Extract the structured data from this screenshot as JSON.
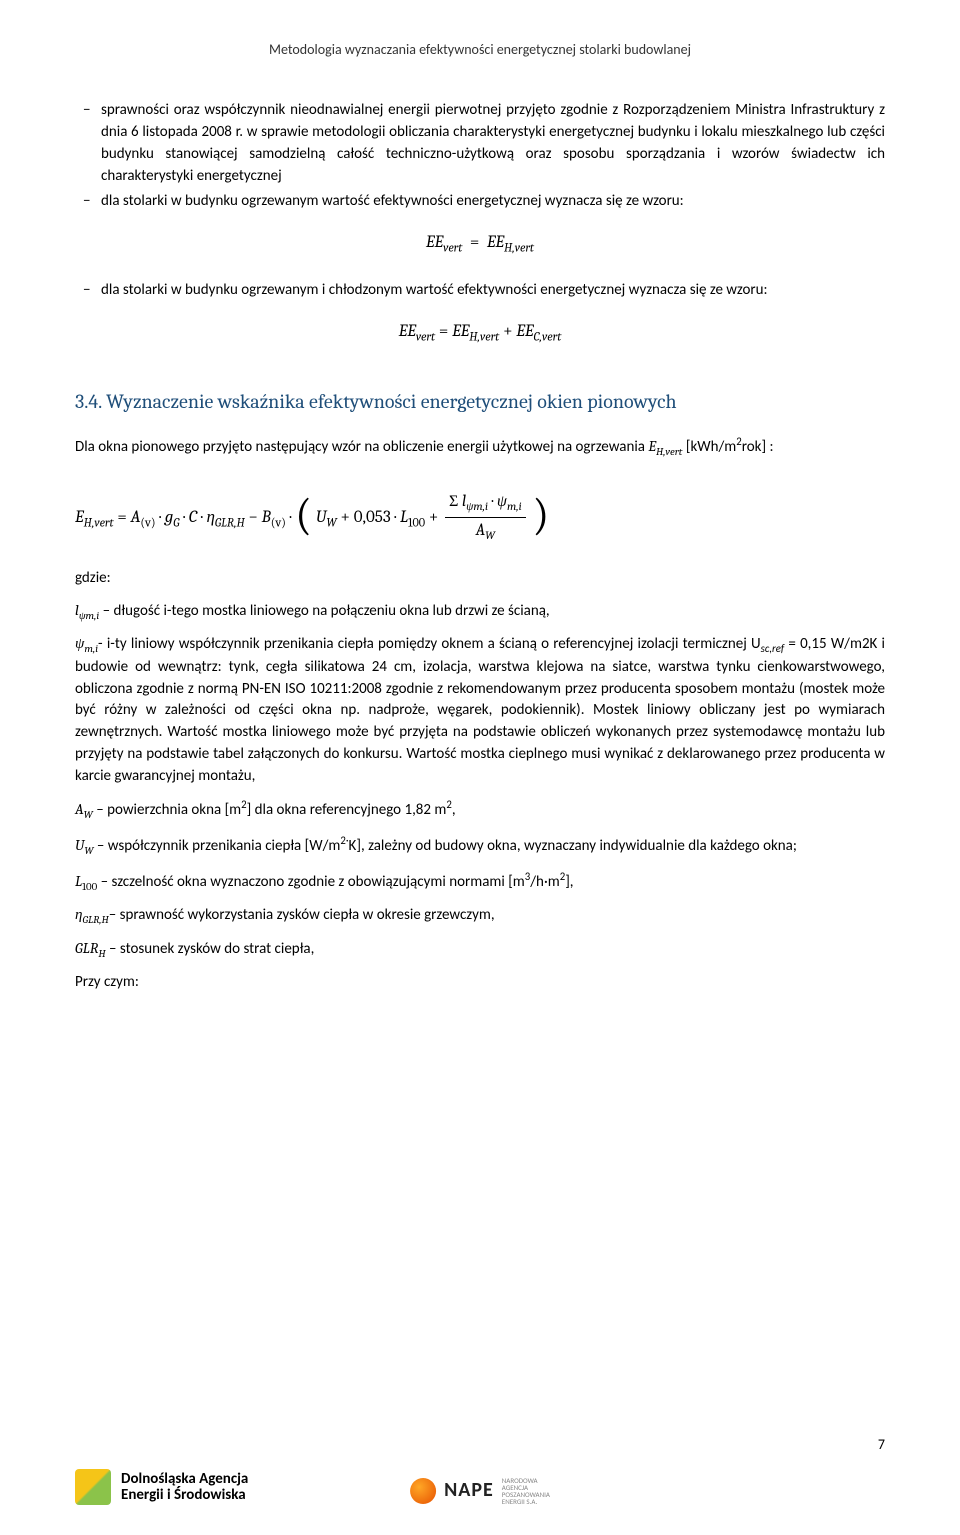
{
  "header": {
    "title": "Metodologia wyznaczania efektywności energetycznej stolarki budowlanej"
  },
  "bullets": {
    "b1": "sprawności oraz współczynnik nieodnawialnej energii pierwotnej przyjęto zgodnie z Rozporządzeniem Ministra Infrastruktury z dnia 6 listopada 2008 r. w sprawie metodologii obliczania charakterystyki energetycznej budynku i lokalu mieszkalnego lub części budynku stanowiącej samodzielną całość techniczno-użytkową oraz sposobu sporządzania i wzorów świadectw ich charakterystyki energetycznej",
    "b2": "dla stolarki w budynku ogrzewanym wartość efektywności energetycznej wyznacza się ze wzoru:",
    "b3": "dla stolarki w budynku ogrzewanym i chłodzonym wartość efektywności energetycznej wyznacza się ze wzoru:"
  },
  "formulas": {
    "f1_lhs": "EE",
    "f1_lhs_sub": "vert",
    "f1_eq": " = ",
    "f1_rhs": "EE",
    "f1_rhs_sub": "H,vert",
    "f2_lhs": "EE",
    "f2_lhs_sub": "vert",
    "f2_rhs1": "EE",
    "f2_rhs1_sub": "H,vert",
    "f2_plus": " + ",
    "f2_rhs2": "EE",
    "f2_rhs2_sub": "C,vert"
  },
  "section": {
    "num_title": "3.4. Wyznaczenie wskaźnika efektywności energetycznej okien pionowych"
  },
  "para1": {
    "pre": "Dla okna pionowego przyjęto następujący wzór na obliczenie energii użytkowej na ogrzewania ",
    "sym": "E",
    "sym_sub": "H,vert",
    "unit_open": " [kWh/m",
    "unit_sup": "2",
    "unit_close": "rok] :"
  },
  "bigf": {
    "E": "E",
    "E_sub": "H,vert",
    "eq": "  =  ",
    "A": "A",
    "A_sub": "(v)",
    "dot": " · ",
    "gG": "g",
    "gG_sub": "G",
    "C": "C",
    "eta": "η",
    "eta_sub": "GLR,H",
    "minus": " − ",
    "B": "B",
    "B_sub": "(v)",
    "dot2": "  ·  ",
    "Uw": "U",
    "Uw_sub": "W",
    "plus1": "  + 0,053  ·  ",
    "L": "L",
    "L_sub": "100",
    "plus2": " + ",
    "frac_num_sigma": "Σ ",
    "frac_num_l": "l",
    "frac_num_l_sub": "ψm,i",
    "frac_num_dot": " · ",
    "frac_num_psi": "ψ",
    "frac_num_psi_sub": "m,i",
    "frac_den": "A",
    "frac_den_sub": "W"
  },
  "gdzie": "gdzie:",
  "defs": {
    "d1_sym": "l",
    "d1_sub": "ψm,i",
    "d1_txt": " – długość i-tego mostka liniowego na połączeniu okna lub drzwi ze ścianą,",
    "d2_sym": "ψ",
    "d2_sub": "m,i",
    "d2_txt_a": "- i-ty liniowy współczynnik przenikania ciepła pomiędzy oknem a ścianą o referencyjnej izolacji termicznej U",
    "d2_scref": "sc,ref",
    "d2_txt_b": " = 0,15 W/m2K i budowie od wewnątrz: tynk, cegła silikatowa 24 cm, izolacja, warstwa klejowa na siatce, warstwa tynku cienkowarstwowego, obliczona zgodnie z normą PN-EN ISO 10211:2008 zgodnie z rekomendowanym przez producenta sposobem montażu (mostek może być różny w zależności od części okna np. nadproże, węgarek, podokiennik).  Mostek liniowy obliczany jest po wymiarach zewnętrznych. Wartość mostka liniowego może być przyjęta na podstawie obliczeń wykonanych przez systemodawcę montażu lub przyjęty na podstawie tabel załączonych do konkursu. Wartość mostka cieplnego musi wynikać z deklarowanego przez producenta w karcie gwarancyjnej montażu,",
    "d3_sym": "A",
    "d3_sub": "W",
    "d3_txt_a": " – powierzchnia okna [m",
    "d3_sup1": "2",
    "d3_txt_b": "] dla okna referencyjnego 1,82 m",
    "d3_sup2": "2",
    "d3_txt_c": ",",
    "d4_sym": "U",
    "d4_sub": "W",
    "d4_txt_a": " – współczynnik przenikania ciepła [W/m",
    "d4_sup": "2·",
    "d4_txt_b": "K], zależny od budowy okna, wyznaczany indywidualnie dla każdego okna;",
    "d5_sym": "L",
    "d5_sub": "100",
    "d5_txt_a": " – szczelność okna wyznaczono zgodnie z obowiązującymi normami [m",
    "d5_sup1": "3",
    "d5_txt_b": "/h·m",
    "d5_sup2": "2",
    "d5_txt_c": "],",
    "d6_sym": "η",
    "d6_sub": "GLR,H",
    "d6_txt": "– sprawność wykorzystania zysków ciepła w okresie grzewczym,",
    "d7_sym": "GLR",
    "d7_sub": "H",
    "d7_txt": " – stosunek zysków do strat ciepła,"
  },
  "przy": "Przy czym:",
  "footer": {
    "left_line1": "Dolnośląska Agencja",
    "left_line2": "Energii i Środowiska",
    "nape": "NAPE",
    "nape_sub1": "NARODOWA",
    "nape_sub2": "AGENCJA",
    "nape_sub3": "POSZANOWANIA",
    "nape_sub4": "ENERGII S.A.",
    "page": "7"
  }
}
